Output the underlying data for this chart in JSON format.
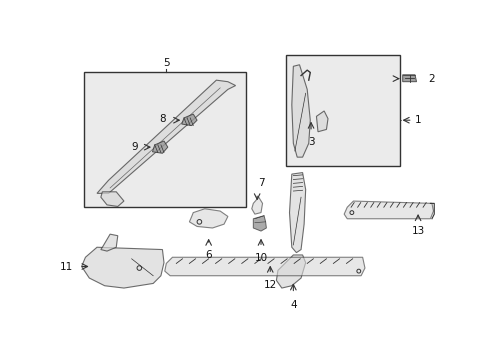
{
  "background_color": "#ffffff",
  "fig_width": 4.89,
  "fig_height": 3.6,
  "dpi": 100,
  "line_color": "#333333",
  "fill_color": "#e8e8e8",
  "label_fontsize": 7.5,
  "box_fill": "#ebebeb"
}
